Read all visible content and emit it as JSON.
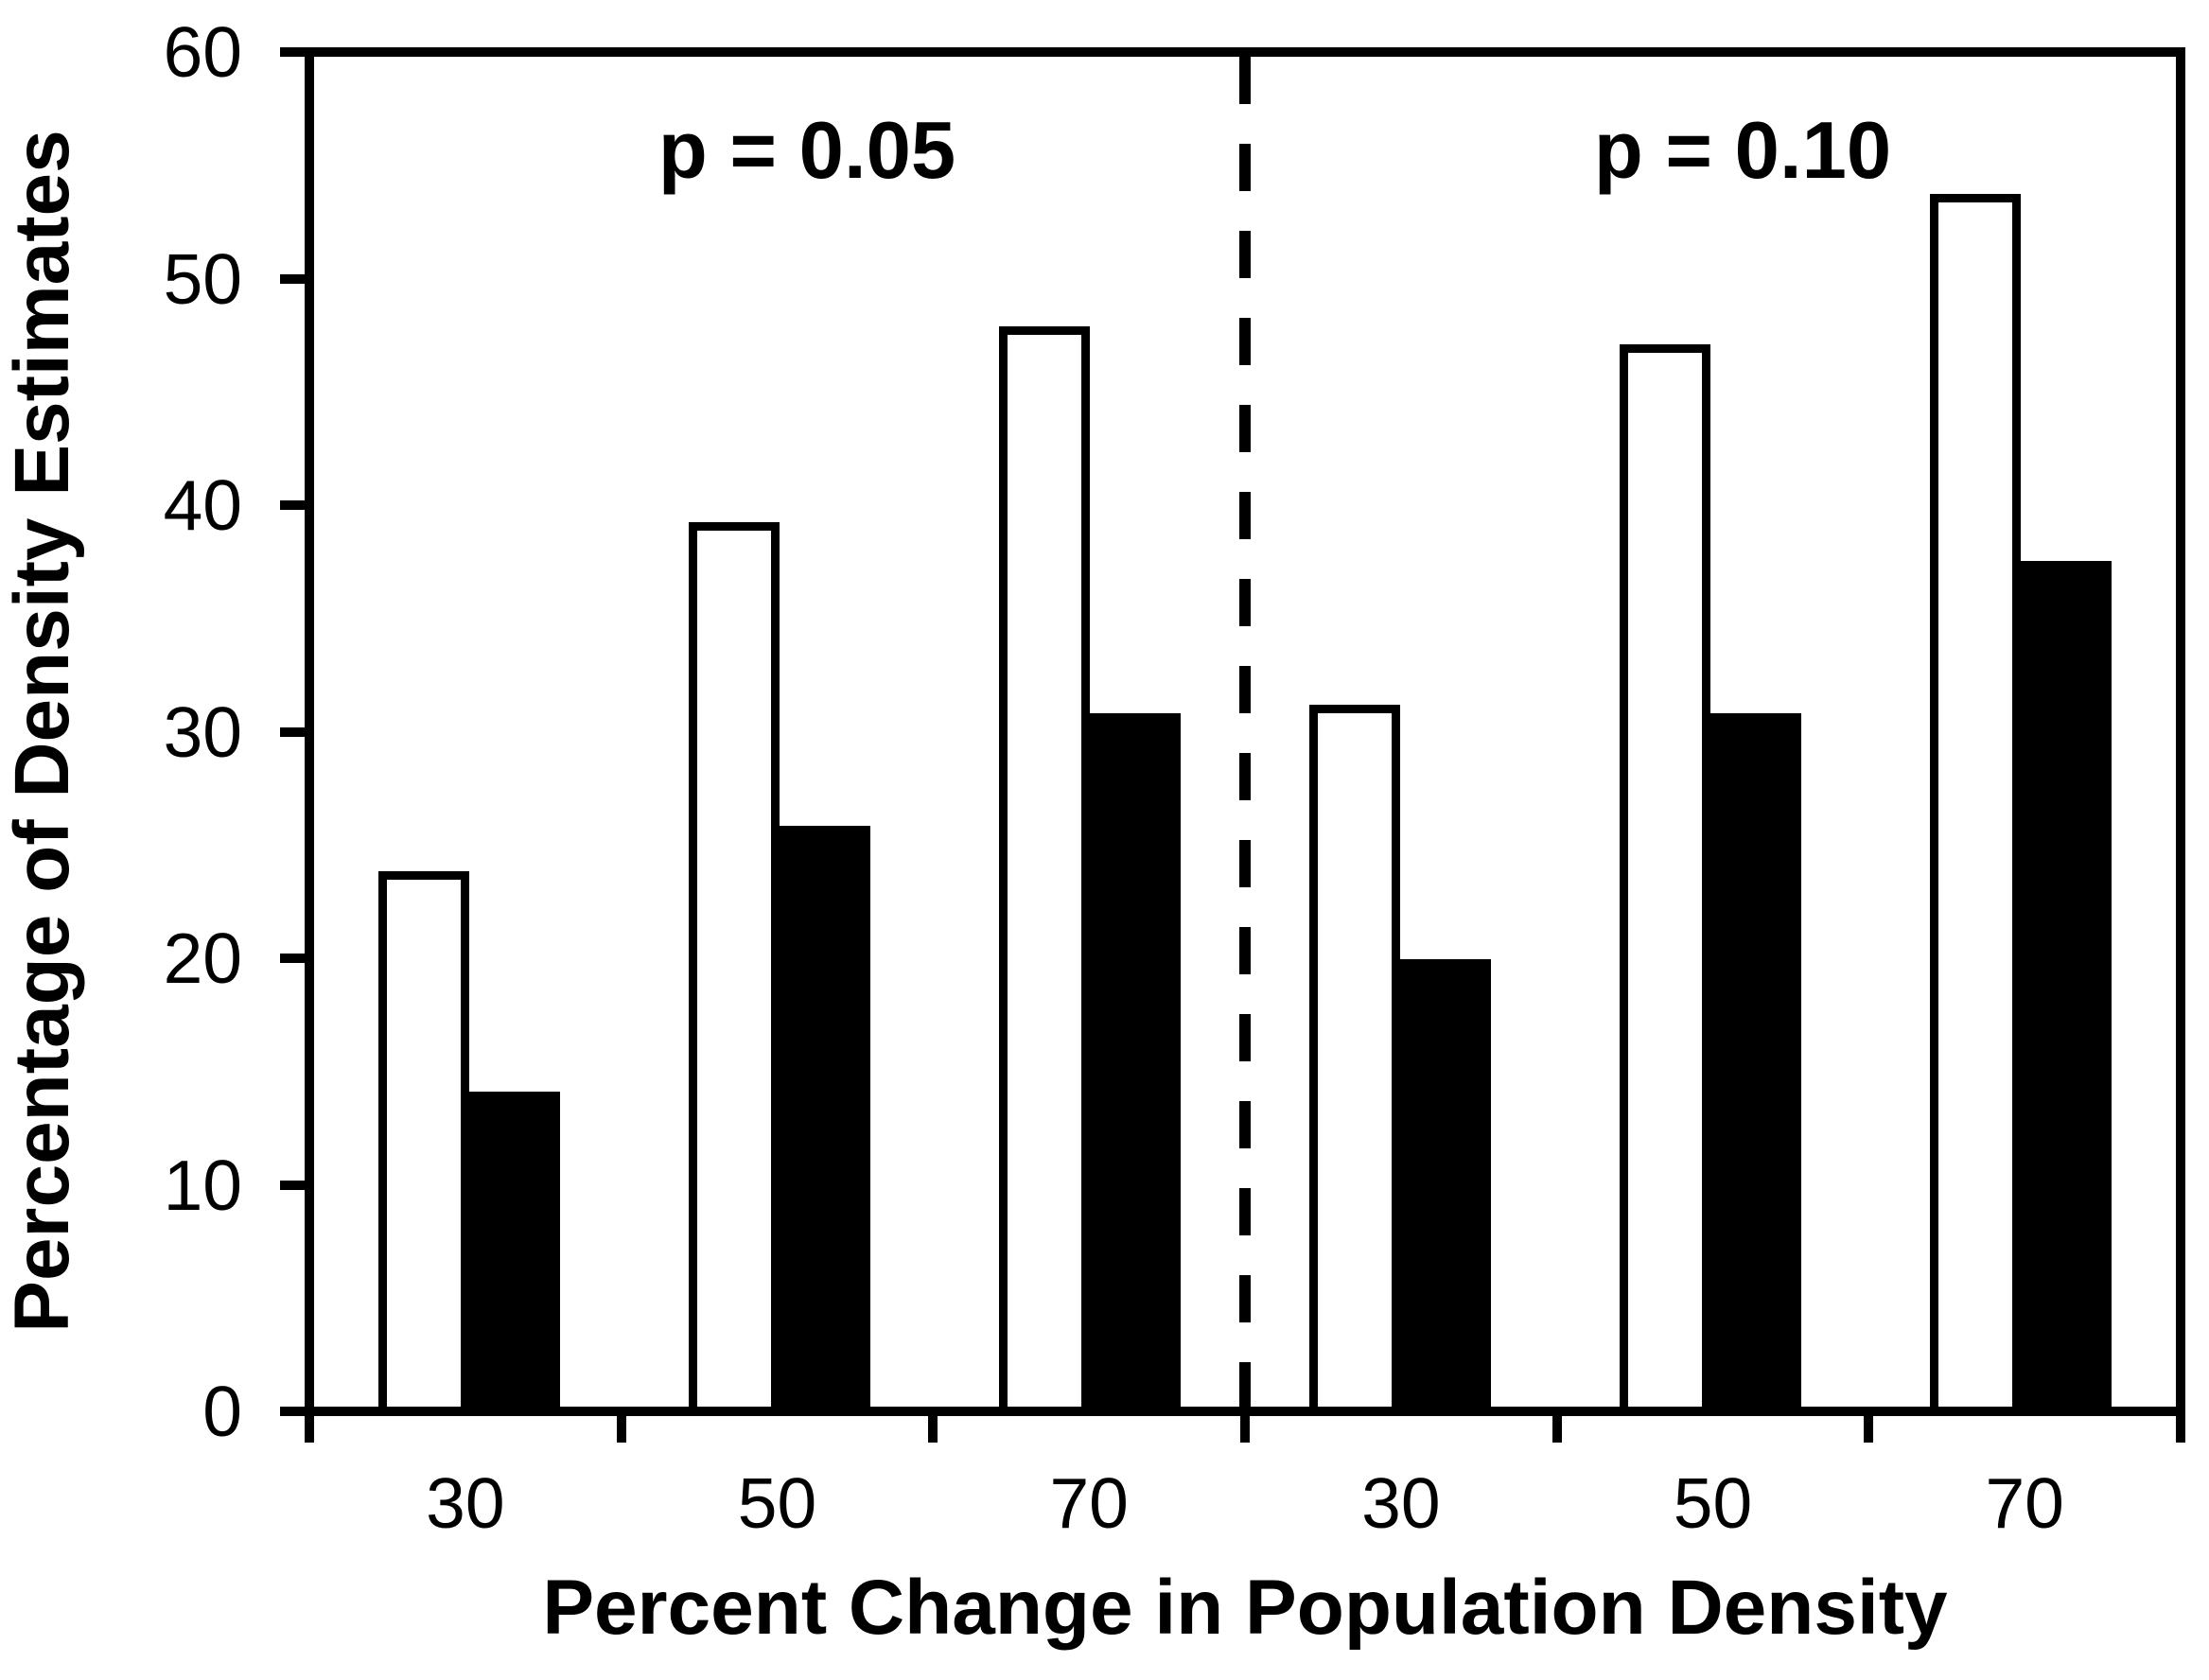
{
  "chart_data": {
    "type": "bar",
    "title": "",
    "xlabel": "Percent Change in Population Density",
    "ylabel": "Percentage of Density Estimates",
    "ylim": [
      0,
      60
    ],
    "yticks": [
      0,
      10,
      20,
      30,
      40,
      50,
      60
    ],
    "grid": false,
    "legend": "none",
    "separator": "vertical dashed line between panels",
    "bar_colors": {
      "open": "#ffffff",
      "filled": "#000000"
    },
    "panels": [
      {
        "label": "p = 0.05",
        "categories": [
          "30",
          "50",
          "70"
        ],
        "series": [
          {
            "name": "open-bars",
            "values": [
              23.8,
              39.3,
              48.0
            ]
          },
          {
            "name": "filled-bars",
            "values": [
              14.0,
              25.8,
              30.8
            ]
          }
        ]
      },
      {
        "label": "p = 0.10",
        "categories": [
          "30",
          "50",
          "70"
        ],
        "series": [
          {
            "name": "open-bars",
            "values": [
              31.2,
              47.2,
              53.9
            ]
          },
          {
            "name": "filled-bars",
            "values": [
              19.9,
              30.8,
              37.6
            ]
          }
        ]
      }
    ]
  }
}
